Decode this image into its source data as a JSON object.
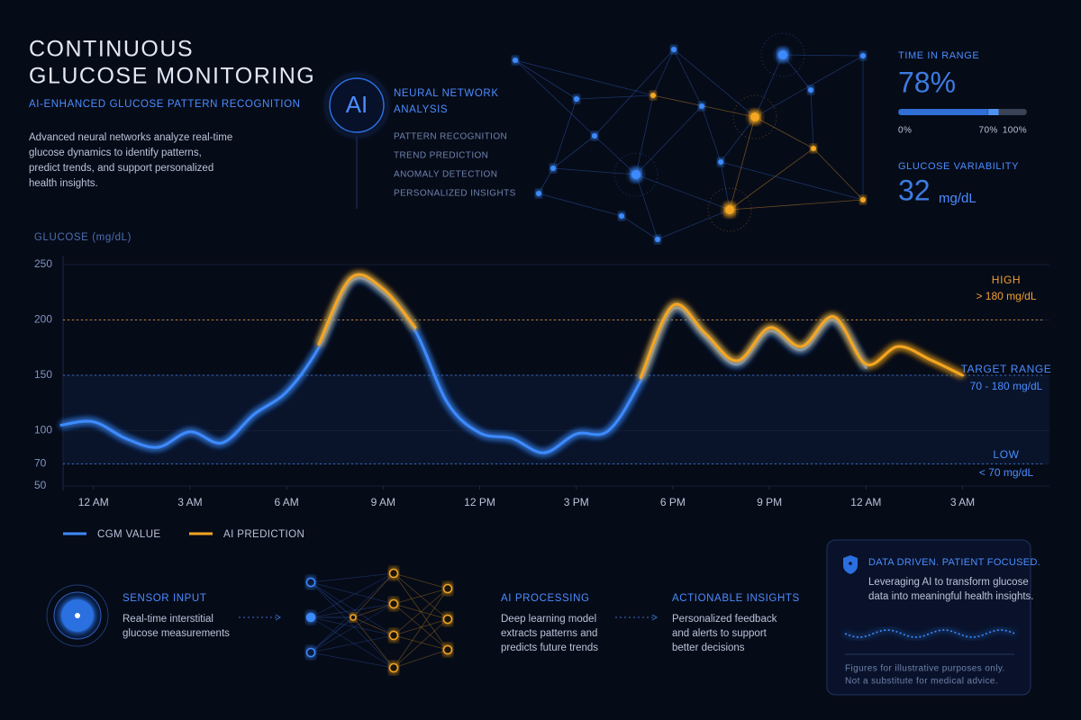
{
  "header": {
    "title_lines": [
      "CONTINUOUS",
      "GLUCOSE MONITORING"
    ],
    "subtitle": "AI-ENHANCED GLUCOSE PATTERN RECOGNITION",
    "description_lines": [
      "Advanced neural networks analyze real-time",
      "glucose dynamics to identify patterns,",
      "predict trends, and support personalized",
      "health insights."
    ]
  },
  "ai_panel": {
    "badge": "AI",
    "title_lines": [
      "NEURAL NETWORK",
      "ANALYSIS"
    ],
    "items": [
      "PATTERN RECOGNITION",
      "TREND PREDICTION",
      "ANOMALY DETECTION",
      "PERSONALIZED INSIGHTS"
    ]
  },
  "stats": {
    "time_in_range": {
      "label": "TIME IN RANGE",
      "value": 78,
      "value_label": "78%",
      "range": [
        0,
        100
      ],
      "ticks": [
        {
          "value": 0,
          "label": "0%"
        },
        {
          "value": 70,
          "label": "70%"
        },
        {
          "value": 100,
          "label": "100%"
        }
      ]
    },
    "variability": {
      "label": "GLUCOSE VARIABILITY",
      "value": 32,
      "unit": "mg/dL"
    }
  },
  "chart_data": {
    "type": "line",
    "y_label": "GLUCOSE (mg/dL)",
    "x": [
      -1,
      0,
      1,
      2,
      3,
      4,
      5,
      6,
      7,
      8,
      9,
      10,
      11,
      12,
      13,
      14,
      15,
      16,
      17,
      18,
      19,
      20,
      21,
      22,
      23,
      24,
      25,
      26,
      27
    ],
    "xlim": [
      -1,
      29.7
    ],
    "xticks": [
      {
        "value": 0,
        "label": "12 AM"
      },
      {
        "value": 3,
        "label": "3 AM"
      },
      {
        "value": 6,
        "label": "6 AM"
      },
      {
        "value": 9,
        "label": "9 AM"
      },
      {
        "value": 12,
        "label": "12 PM"
      },
      {
        "value": 15,
        "label": "3 PM"
      },
      {
        "value": 18,
        "label": "6 PM"
      },
      {
        "value": 21,
        "label": "9 PM"
      },
      {
        "value": 24,
        "label": "12 AM"
      },
      {
        "value": 27,
        "label": "3 AM"
      }
    ],
    "ylim": [
      50,
      250
    ],
    "yticks": [
      250,
      200,
      150,
      100,
      70,
      50
    ],
    "grid": true,
    "series": [
      {
        "name": "CGM VALUE",
        "color": "#3d8bff",
        "values": [
          105,
          108,
          93,
          85,
          99,
          89,
          115,
          135,
          175,
          235,
          225,
          190,
          125,
          98,
          93,
          80,
          97,
          100,
          145,
          210,
          185,
          160,
          190,
          173,
          200,
          157,
          null,
          null,
          null
        ]
      },
      {
        "name": "AI PREDICTION",
        "color": "#f5a623",
        "values": [
          null,
          null,
          null,
          null,
          null,
          null,
          null,
          null,
          178,
          238,
          228,
          193,
          null,
          null,
          null,
          null,
          null,
          null,
          148,
          213,
          188,
          163,
          193,
          176,
          203,
          160,
          176,
          164,
          150
        ]
      }
    ],
    "reference_lines": [
      {
        "value": 200,
        "color": "#e8962e"
      },
      {
        "value": 150,
        "color": "#3d7be0"
      },
      {
        "value": 70,
        "color": "#3d7be0"
      }
    ],
    "annotations": [
      {
        "title": "HIGH",
        "text": "> 180 mg/dL",
        "color": "#f0a030"
      },
      {
        "title": "TARGET RANGE",
        "text": "70 - 180 mg/dL",
        "color": "#4b8dff"
      },
      {
        "title": "LOW",
        "text": "< 70 mg/dL",
        "color": "#4b8dff"
      }
    ]
  },
  "pipeline": [
    {
      "title": "SENSOR INPUT",
      "lines": [
        "Real-time interstitial",
        "glucose measurements"
      ]
    },
    {
      "title": "AI PROCESSING",
      "lines": [
        "Deep learning model",
        "extracts patterns and",
        "predicts future trends"
      ]
    },
    {
      "title": "ACTIONABLE INSIGHTS",
      "lines": [
        "Personalized feedback",
        "and alerts to support",
        "better decisions"
      ]
    }
  ],
  "card": {
    "title": "DATA DRIVEN. PATIENT FOCUSED.",
    "lines": [
      "Leveraging AI to transform glucose",
      "data into meaningful health insights."
    ],
    "footnote_lines": [
      "Figures for illustrative purposes only.",
      "Not a substitute for medical advice."
    ]
  }
}
